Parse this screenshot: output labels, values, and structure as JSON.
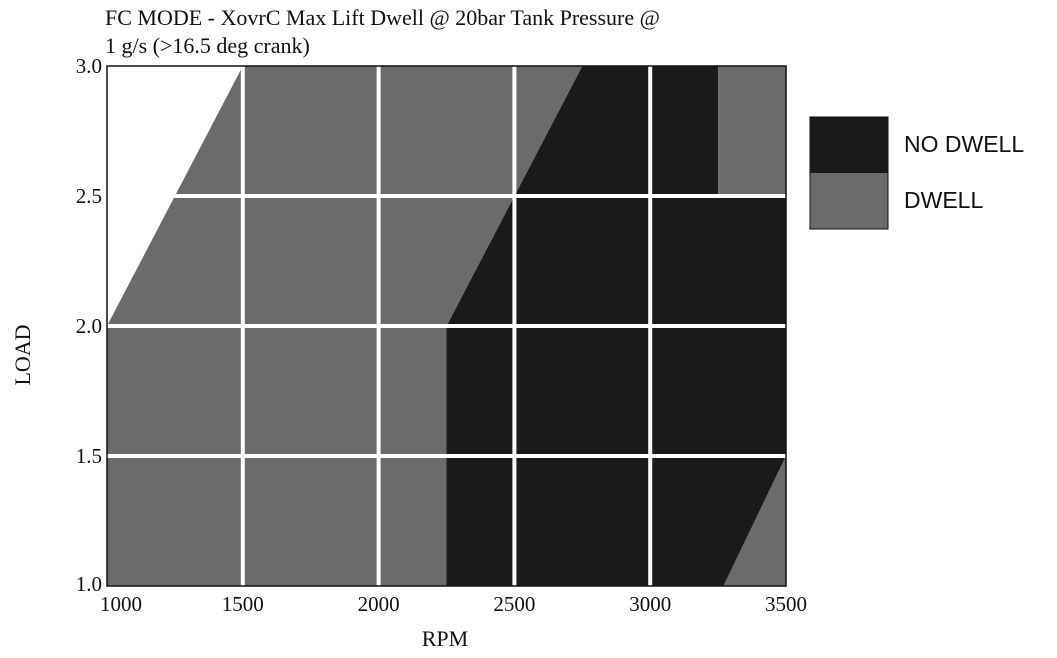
{
  "chart_data": {
    "type": "heatmap",
    "title_lines": [
      "FC MODE - XovrC Max Lift Dwell @ 20bar Tank Pressure @",
      "1 g/s (>16.5 deg crank)"
    ],
    "xlabel": "RPM",
    "ylabel": "LOAD",
    "xlim": [
      1000,
      3500
    ],
    "ylim": [
      1.0,
      3.0
    ],
    "x_ticks": [
      "1000",
      "1500",
      "2000",
      "2500",
      "3000",
      "3500"
    ],
    "y_ticks": [
      "1.0",
      "1.5",
      "2.0",
      "2.5",
      "3.0"
    ],
    "grid": true,
    "legend_position": "right",
    "categories": [
      {
        "name": "NO DWELL",
        "color": "#1a1a1a"
      },
      {
        "name": "DWELL",
        "color": "#6b6b6b"
      }
    ],
    "regions": [
      {
        "category": "NO DWELL",
        "polygon": [
          [
            2250,
            1.0
          ],
          [
            3270,
            1.0
          ],
          [
            3500,
            1.5
          ],
          [
            3500,
            2.5
          ],
          [
            3250,
            2.5
          ],
          [
            3250,
            3.0
          ],
          [
            2750,
            3.0
          ],
          [
            2500,
            2.5
          ],
          [
            2250,
            2.0
          ]
        ]
      },
      {
        "category": "DWELL",
        "polygon": [
          [
            1000,
            1.0
          ],
          [
            2250,
            1.0
          ],
          [
            2250,
            2.0
          ],
          [
            2500,
            2.5
          ],
          [
            2750,
            3.0
          ],
          [
            1500,
            3.0
          ],
          [
            1000,
            2.0
          ]
        ]
      },
      {
        "category": "DWELL",
        "polygon": [
          [
            3250,
            2.5
          ],
          [
            3500,
            2.5
          ],
          [
            3500,
            3.0
          ],
          [
            3250,
            3.0
          ]
        ]
      },
      {
        "category": "DWELL",
        "polygon": [
          [
            3270,
            1.0
          ],
          [
            3500,
            1.0
          ],
          [
            3500,
            1.5
          ]
        ]
      }
    ]
  }
}
